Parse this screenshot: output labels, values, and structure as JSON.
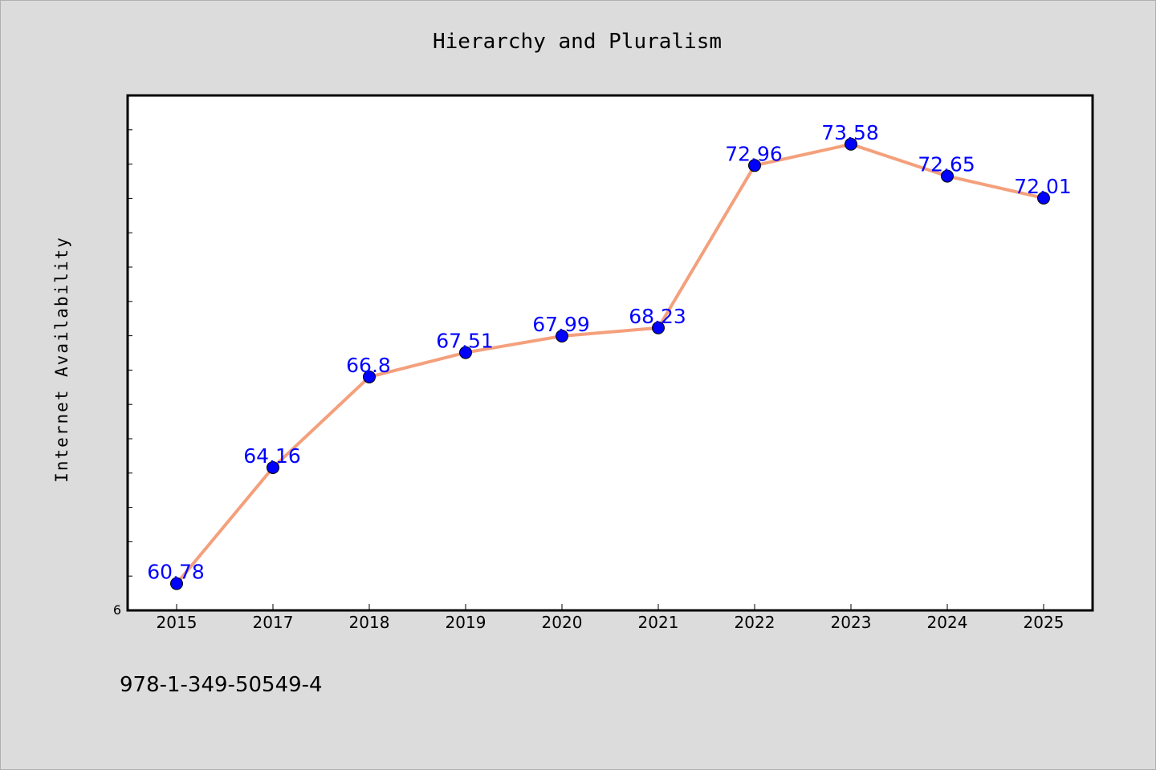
{
  "chart_data": {
    "type": "line",
    "title": "Hierarchy and Pluralism",
    "xlabel": "",
    "ylabel": "Internet Availability",
    "categories": [
      "2015",
      "2017",
      "2018",
      "2019",
      "2020",
      "2021",
      "2022",
      "2023",
      "2024",
      "2025"
    ],
    "values": [
      60.78,
      64.16,
      66.8,
      67.51,
      67.99,
      68.23,
      72.96,
      73.58,
      72.65,
      72.01
    ],
    "data_labels": [
      "60.78",
      "64.16",
      "66.8",
      "67.51",
      "67.99",
      "68.23",
      "72.96",
      "73.58",
      "72.65",
      "72.01"
    ],
    "ylim": [
      60,
      75
    ],
    "y_tick_labels": [
      "6"
    ],
    "grid": false,
    "line_color": "#f4a07c",
    "marker_color": "#0000ff",
    "label_color": "#0000ff",
    "plot_background": "#ffffff",
    "figure_background": "#dcdcdc"
  },
  "footer": {
    "isbn": "978-1-349-50549-4"
  }
}
